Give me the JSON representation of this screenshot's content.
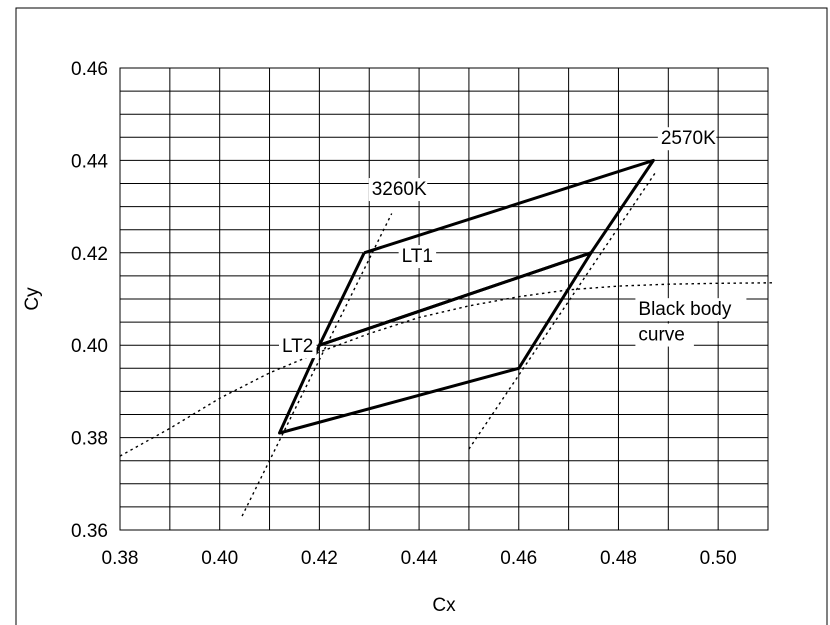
{
  "chart_data": {
    "type": "line",
    "xlabel": "Cx",
    "ylabel": "Cy",
    "xlim": [
      0.38,
      0.51
    ],
    "ylim": [
      0.36,
      0.46
    ],
    "grid": true,
    "legend": "none",
    "x_ticks": [
      "0.38",
      "0.40",
      "0.42",
      "0.44",
      "0.46",
      "0.48",
      "0.50"
    ],
    "y_ticks": [
      "0.36",
      "0.38",
      "0.40",
      "0.42",
      "0.44",
      "0.46"
    ],
    "series": [
      {
        "style": "solid",
        "color": "#000000",
        "x": [
          0.429,
          0.487,
          0.4745,
          0.42,
          0.429
        ],
        "y": [
          0.42,
          0.44,
          0.42,
          0.4,
          0.42
        ]
      },
      {
        "style": "solid",
        "color": "#000000",
        "x": [
          0.42,
          0.4745,
          0.46,
          0.412,
          0.42
        ],
        "y": [
          0.4,
          0.42,
          0.395,
          0.381,
          0.4
        ]
      },
      {
        "name": "Black body curve",
        "style": "dotted",
        "color": "#000000",
        "x": [
          0.38,
          0.39,
          0.4,
          0.41,
          0.42,
          0.43,
          0.44,
          0.45,
          0.46,
          0.47,
          0.48,
          0.49,
          0.5,
          0.511
        ],
        "y": [
          0.376,
          0.382,
          0.3885,
          0.394,
          0.3985,
          0.4025,
          0.406,
          0.4085,
          0.4105,
          0.412,
          0.4128,
          0.4132,
          0.4134,
          0.4135
        ]
      },
      {
        "style": "dotted",
        "color": "#000000",
        "x": [
          0.4045,
          0.4345
        ],
        "y": [
          0.363,
          0.4285
        ]
      },
      {
        "style": "dotted",
        "color": "#000000",
        "x": [
          0.45,
          0.4875
        ],
        "y": [
          0.3775,
          0.4375
        ]
      }
    ],
    "annotations": [
      {
        "text": "2570K",
        "x": 0.4885,
        "y": 0.4435
      },
      {
        "text": "3260K",
        "x": 0.4305,
        "y": 0.4325
      },
      {
        "text": "LT1",
        "x": 0.4365,
        "y": 0.418
      },
      {
        "text": "LT2",
        "x": 0.4125,
        "y": 0.3985
      },
      {
        "text": "Black body",
        "x": 0.484,
        "y": 0.4065
      },
      {
        "text": "curve",
        "x": 0.484,
        "y": 0.401
      }
    ]
  }
}
